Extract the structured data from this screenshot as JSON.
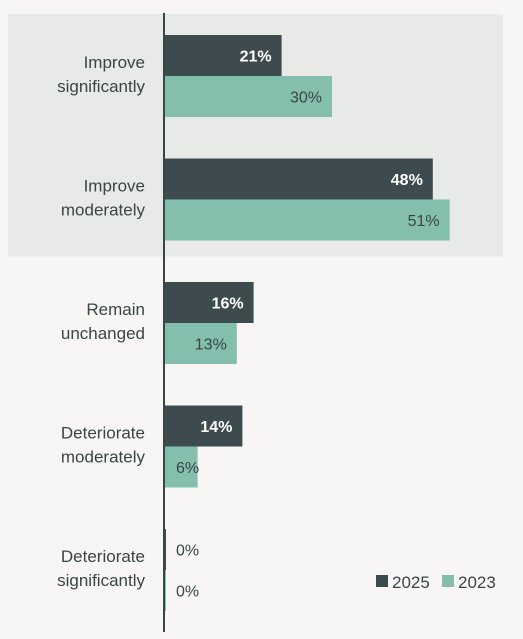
{
  "chart_data": {
    "type": "bar",
    "orientation": "horizontal",
    "categories": [
      [
        "Improve",
        "significantly"
      ],
      [
        "Improve",
        "moderately"
      ],
      [
        "Remain",
        "unchanged"
      ],
      [
        "Deteriorate",
        "moderately"
      ],
      [
        "Deteriorate",
        "significantly"
      ]
    ],
    "series": [
      {
        "name": "2025",
        "values": [
          21,
          48,
          16,
          14,
          0
        ],
        "labels": [
          "21%",
          "48%",
          "16%",
          "14%",
          "0%"
        ],
        "color": "#3e4b4e"
      },
      {
        "name": "2023",
        "values": [
          30,
          51,
          13,
          6,
          0
        ],
        "labels": [
          "30%",
          "51%",
          "13%",
          "6%",
          "0%"
        ],
        "color": "#84bfae"
      }
    ],
    "xlim": [
      0,
      60
    ],
    "highlighted_categories": [
      0,
      1
    ],
    "highlight_color": "#e8eae8",
    "legend": "bottom-right",
    "title": "",
    "xlabel": "",
    "ylabel": ""
  }
}
